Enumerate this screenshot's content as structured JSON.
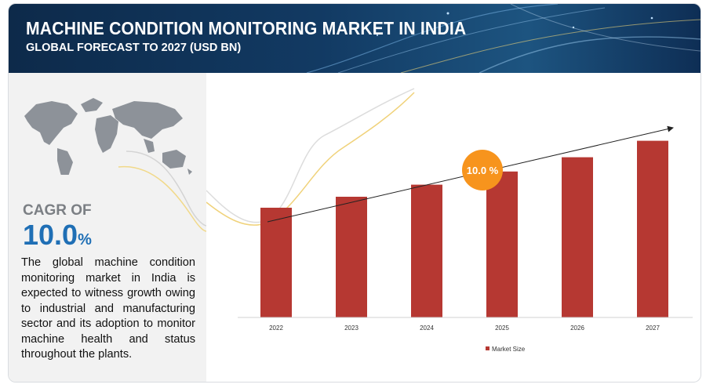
{
  "header": {
    "title": "MACHINE CONDITION MONITORING MARKET IN INDIA",
    "subtitle": "GLOBAL FORECAST TO 2027 (USD BN)"
  },
  "summary": {
    "cagr_label": "CAGR OF",
    "cagr_value": "10.0",
    "cagr_unit": "%",
    "description": "The global machine condition monitoring market in India is expected to witness growth owing to industrial and manufacturing sector and its adoption to monitor machine health and status throughout the plants."
  },
  "chart_data": {
    "type": "bar",
    "categories": [
      "2022",
      "2023",
      "2024",
      "2025",
      "2026",
      "2027"
    ],
    "series": [
      {
        "name": "Market Size",
        "values": [
          1.0,
          1.1,
          1.21,
          1.33,
          1.46,
          1.61
        ]
      }
    ],
    "ylim": [
      0,
      1.8
    ],
    "grid": false,
    "legend": "bottom-center",
    "annotation": "10.0 %",
    "colors": {
      "bar": "#b63832",
      "badge": "#f7941d",
      "header": "#123a63",
      "accent": "#1f6fb5"
    }
  }
}
